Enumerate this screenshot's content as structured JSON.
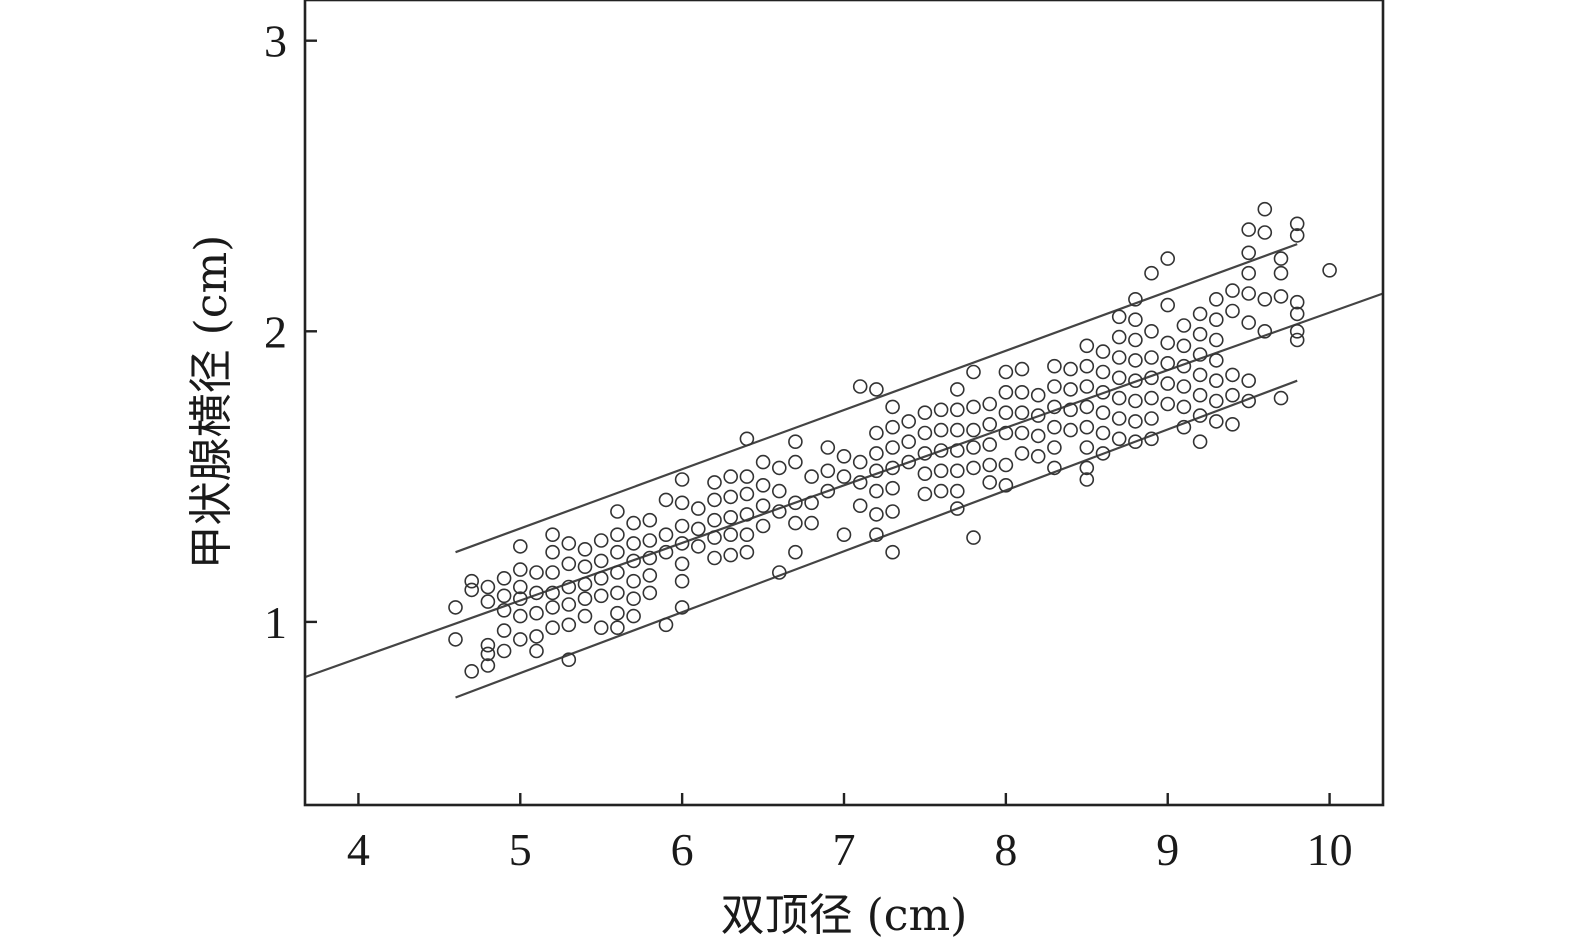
{
  "chart_data": {
    "type": "scatter",
    "title": "",
    "xlabel": "双顶径 (cm)",
    "ylabel": "甲状腺横径 (cm)",
    "xlim": [
      3.67,
      10.33
    ],
    "ylim": [
      0.37,
      3.14
    ],
    "x_ticks": [
      "4",
      "5",
      "6",
      "7",
      "8",
      "9",
      "10"
    ],
    "y_ticks": [
      "1",
      "2",
      "3"
    ],
    "grid": false,
    "legend": "none",
    "point_style": "open-circle",
    "regression": {
      "fit": {
        "x": [
          3.67,
          10.33
        ],
        "y": [
          0.81,
          2.13
        ]
      },
      "upper": {
        "x": [
          4.6,
          9.8
        ],
        "y": [
          1.24,
          2.3
        ]
      },
      "lower": {
        "x": [
          4.6,
          9.8
        ],
        "y": [
          0.74,
          1.83
        ]
      }
    },
    "series": [
      {
        "points": [
          [
            4.6,
            1.05
          ],
          [
            4.6,
            0.94
          ],
          [
            4.7,
            1.14
          ],
          [
            4.7,
            1.11
          ],
          [
            4.7,
            0.83
          ],
          [
            4.8,
            1.12
          ],
          [
            4.8,
            1.07
          ],
          [
            4.8,
            0.92
          ],
          [
            4.8,
            0.89
          ],
          [
            4.8,
            0.85
          ],
          [
            4.9,
            1.15
          ],
          [
            4.9,
            1.09
          ],
          [
            4.9,
            1.04
          ],
          [
            4.9,
            0.97
          ],
          [
            4.9,
            0.9
          ],
          [
            5.0,
            1.26
          ],
          [
            5.0,
            1.18
          ],
          [
            5.0,
            1.12
          ],
          [
            5.0,
            1.08
          ],
          [
            5.0,
            1.02
          ],
          [
            5.0,
            0.94
          ],
          [
            5.1,
            1.17
          ],
          [
            5.1,
            1.1
          ],
          [
            5.1,
            1.03
          ],
          [
            5.1,
            0.95
          ],
          [
            5.1,
            0.9
          ],
          [
            5.2,
            1.3
          ],
          [
            5.2,
            1.24
          ],
          [
            5.2,
            1.17
          ],
          [
            5.2,
            1.1
          ],
          [
            5.2,
            1.05
          ],
          [
            5.2,
            0.98
          ],
          [
            5.3,
            1.27
          ],
          [
            5.3,
            1.2
          ],
          [
            5.3,
            1.12
          ],
          [
            5.3,
            1.06
          ],
          [
            5.3,
            0.99
          ],
          [
            5.3,
            0.87
          ],
          [
            5.4,
            1.25
          ],
          [
            5.4,
            1.19
          ],
          [
            5.4,
            1.13
          ],
          [
            5.4,
            1.08
          ],
          [
            5.4,
            1.02
          ],
          [
            5.5,
            1.28
          ],
          [
            5.5,
            1.21
          ],
          [
            5.5,
            1.15
          ],
          [
            5.5,
            1.09
          ],
          [
            5.5,
            0.98
          ],
          [
            5.6,
            1.38
          ],
          [
            5.6,
            1.3
          ],
          [
            5.6,
            1.24
          ],
          [
            5.6,
            1.17
          ],
          [
            5.6,
            1.1
          ],
          [
            5.6,
            1.03
          ],
          [
            5.6,
            0.98
          ],
          [
            5.7,
            1.34
          ],
          [
            5.7,
            1.27
          ],
          [
            5.7,
            1.21
          ],
          [
            5.7,
            1.14
          ],
          [
            5.7,
            1.08
          ],
          [
            5.7,
            1.02
          ],
          [
            5.8,
            1.35
          ],
          [
            5.8,
            1.28
          ],
          [
            5.8,
            1.22
          ],
          [
            5.8,
            1.16
          ],
          [
            5.8,
            1.1
          ],
          [
            5.9,
            1.42
          ],
          [
            5.9,
            1.3
          ],
          [
            5.9,
            1.24
          ],
          [
            5.9,
            0.99
          ],
          [
            6.0,
            1.49
          ],
          [
            6.0,
            1.41
          ],
          [
            6.0,
            1.33
          ],
          [
            6.0,
            1.27
          ],
          [
            6.0,
            1.2
          ],
          [
            6.0,
            1.14
          ],
          [
            6.0,
            1.05
          ],
          [
            6.1,
            1.39
          ],
          [
            6.1,
            1.32
          ],
          [
            6.1,
            1.26
          ],
          [
            6.2,
            1.48
          ],
          [
            6.2,
            1.42
          ],
          [
            6.2,
            1.35
          ],
          [
            6.2,
            1.29
          ],
          [
            6.2,
            1.22
          ],
          [
            6.3,
            1.5
          ],
          [
            6.3,
            1.43
          ],
          [
            6.3,
            1.36
          ],
          [
            6.3,
            1.3
          ],
          [
            6.3,
            1.23
          ],
          [
            6.4,
            1.63
          ],
          [
            6.4,
            1.5
          ],
          [
            6.4,
            1.44
          ],
          [
            6.4,
            1.37
          ],
          [
            6.4,
            1.3
          ],
          [
            6.4,
            1.24
          ],
          [
            6.5,
            1.55
          ],
          [
            6.5,
            1.47
          ],
          [
            6.5,
            1.4
          ],
          [
            6.5,
            1.33
          ],
          [
            6.6,
            1.53
          ],
          [
            6.6,
            1.45
          ],
          [
            6.6,
            1.38
          ],
          [
            6.6,
            1.17
          ],
          [
            6.7,
            1.62
          ],
          [
            6.7,
            1.55
          ],
          [
            6.7,
            1.41
          ],
          [
            6.7,
            1.34
          ],
          [
            6.7,
            1.24
          ],
          [
            6.8,
            1.5
          ],
          [
            6.8,
            1.41
          ],
          [
            6.8,
            1.34
          ],
          [
            6.9,
            1.6
          ],
          [
            6.9,
            1.52
          ],
          [
            6.9,
            1.45
          ],
          [
            7.0,
            1.57
          ],
          [
            7.0,
            1.5
          ],
          [
            7.0,
            1.3
          ],
          [
            7.1,
            1.81
          ],
          [
            7.1,
            1.55
          ],
          [
            7.1,
            1.48
          ],
          [
            7.1,
            1.4
          ],
          [
            7.2,
            1.8
          ],
          [
            7.2,
            1.65
          ],
          [
            7.2,
            1.58
          ],
          [
            7.2,
            1.52
          ],
          [
            7.2,
            1.45
          ],
          [
            7.2,
            1.37
          ],
          [
            7.2,
            1.3
          ],
          [
            7.3,
            1.74
          ],
          [
            7.3,
            1.67
          ],
          [
            7.3,
            1.6
          ],
          [
            7.3,
            1.53
          ],
          [
            7.3,
            1.46
          ],
          [
            7.3,
            1.38
          ],
          [
            7.3,
            1.24
          ],
          [
            7.4,
            1.69
          ],
          [
            7.4,
            1.62
          ],
          [
            7.4,
            1.55
          ],
          [
            7.5,
            1.72
          ],
          [
            7.5,
            1.65
          ],
          [
            7.5,
            1.58
          ],
          [
            7.5,
            1.51
          ],
          [
            7.5,
            1.44
          ],
          [
            7.6,
            1.73
          ],
          [
            7.6,
            1.66
          ],
          [
            7.6,
            1.59
          ],
          [
            7.6,
            1.52
          ],
          [
            7.6,
            1.45
          ],
          [
            7.7,
            1.8
          ],
          [
            7.7,
            1.73
          ],
          [
            7.7,
            1.66
          ],
          [
            7.7,
            1.59
          ],
          [
            7.7,
            1.52
          ],
          [
            7.7,
            1.45
          ],
          [
            7.7,
            1.39
          ],
          [
            7.8,
            1.86
          ],
          [
            7.8,
            1.74
          ],
          [
            7.8,
            1.66
          ],
          [
            7.8,
            1.6
          ],
          [
            7.8,
            1.53
          ],
          [
            7.8,
            1.29
          ],
          [
            7.9,
            1.75
          ],
          [
            7.9,
            1.68
          ],
          [
            7.9,
            1.61
          ],
          [
            7.9,
            1.54
          ],
          [
            7.9,
            1.48
          ],
          [
            8.0,
            1.86
          ],
          [
            8.0,
            1.79
          ],
          [
            8.0,
            1.72
          ],
          [
            8.0,
            1.65
          ],
          [
            8.0,
            1.54
          ],
          [
            8.0,
            1.47
          ],
          [
            8.1,
            1.87
          ],
          [
            8.1,
            1.79
          ],
          [
            8.1,
            1.72
          ],
          [
            8.1,
            1.65
          ],
          [
            8.1,
            1.58
          ],
          [
            8.2,
            1.78
          ],
          [
            8.2,
            1.71
          ],
          [
            8.2,
            1.64
          ],
          [
            8.2,
            1.57
          ],
          [
            8.3,
            1.88
          ],
          [
            8.3,
            1.81
          ],
          [
            8.3,
            1.74
          ],
          [
            8.3,
            1.67
          ],
          [
            8.3,
            1.6
          ],
          [
            8.3,
            1.53
          ],
          [
            8.4,
            1.87
          ],
          [
            8.4,
            1.8
          ],
          [
            8.4,
            1.73
          ],
          [
            8.4,
            1.66
          ],
          [
            8.5,
            1.95
          ],
          [
            8.5,
            1.88
          ],
          [
            8.5,
            1.81
          ],
          [
            8.5,
            1.74
          ],
          [
            8.5,
            1.67
          ],
          [
            8.5,
            1.6
          ],
          [
            8.5,
            1.53
          ],
          [
            8.5,
            1.49
          ],
          [
            8.6,
            1.93
          ],
          [
            8.6,
            1.86
          ],
          [
            8.6,
            1.79
          ],
          [
            8.6,
            1.72
          ],
          [
            8.6,
            1.65
          ],
          [
            8.6,
            1.58
          ],
          [
            8.7,
            2.05
          ],
          [
            8.7,
            1.98
          ],
          [
            8.7,
            1.91
          ],
          [
            8.7,
            1.84
          ],
          [
            8.7,
            1.77
          ],
          [
            8.7,
            1.7
          ],
          [
            8.7,
            1.63
          ],
          [
            8.8,
            2.11
          ],
          [
            8.8,
            2.04
          ],
          [
            8.8,
            1.97
          ],
          [
            8.8,
            1.9
          ],
          [
            8.8,
            1.83
          ],
          [
            8.8,
            1.76
          ],
          [
            8.8,
            1.69
          ],
          [
            8.8,
            1.62
          ],
          [
            8.9,
            2.2
          ],
          [
            8.9,
            2.0
          ],
          [
            8.9,
            1.91
          ],
          [
            8.9,
            1.84
          ],
          [
            8.9,
            1.77
          ],
          [
            8.9,
            1.7
          ],
          [
            8.9,
            1.63
          ],
          [
            9.0,
            2.25
          ],
          [
            9.0,
            2.09
          ],
          [
            9.0,
            1.96
          ],
          [
            9.0,
            1.89
          ],
          [
            9.0,
            1.82
          ],
          [
            9.0,
            1.75
          ],
          [
            9.1,
            2.02
          ],
          [
            9.1,
            1.95
          ],
          [
            9.1,
            1.88
          ],
          [
            9.1,
            1.81
          ],
          [
            9.1,
            1.74
          ],
          [
            9.1,
            1.67
          ],
          [
            9.2,
            2.06
          ],
          [
            9.2,
            1.99
          ],
          [
            9.2,
            1.92
          ],
          [
            9.2,
            1.85
          ],
          [
            9.2,
            1.78
          ],
          [
            9.2,
            1.71
          ],
          [
            9.2,
            1.62
          ],
          [
            9.3,
            2.11
          ],
          [
            9.3,
            2.04
          ],
          [
            9.3,
            1.97
          ],
          [
            9.3,
            1.9
          ],
          [
            9.3,
            1.83
          ],
          [
            9.3,
            1.76
          ],
          [
            9.3,
            1.69
          ],
          [
            9.4,
            2.14
          ],
          [
            9.4,
            2.07
          ],
          [
            9.4,
            1.85
          ],
          [
            9.4,
            1.78
          ],
          [
            9.4,
            1.68
          ],
          [
            9.5,
            2.35
          ],
          [
            9.5,
            2.27
          ],
          [
            9.5,
            2.2
          ],
          [
            9.5,
            2.13
          ],
          [
            9.5,
            2.03
          ],
          [
            9.5,
            1.83
          ],
          [
            9.5,
            1.76
          ],
          [
            9.6,
            2.42
          ],
          [
            9.6,
            2.34
          ],
          [
            9.6,
            2.11
          ],
          [
            9.6,
            2.0
          ],
          [
            9.7,
            2.25
          ],
          [
            9.7,
            2.2
          ],
          [
            9.7,
            2.12
          ],
          [
            9.7,
            1.77
          ],
          [
            9.8,
            2.37
          ],
          [
            9.8,
            2.33
          ],
          [
            9.8,
            2.1
          ],
          [
            9.8,
            2.06
          ],
          [
            9.8,
            2.0
          ],
          [
            9.8,
            1.97
          ],
          [
            10.0,
            2.21
          ]
        ]
      }
    ]
  }
}
